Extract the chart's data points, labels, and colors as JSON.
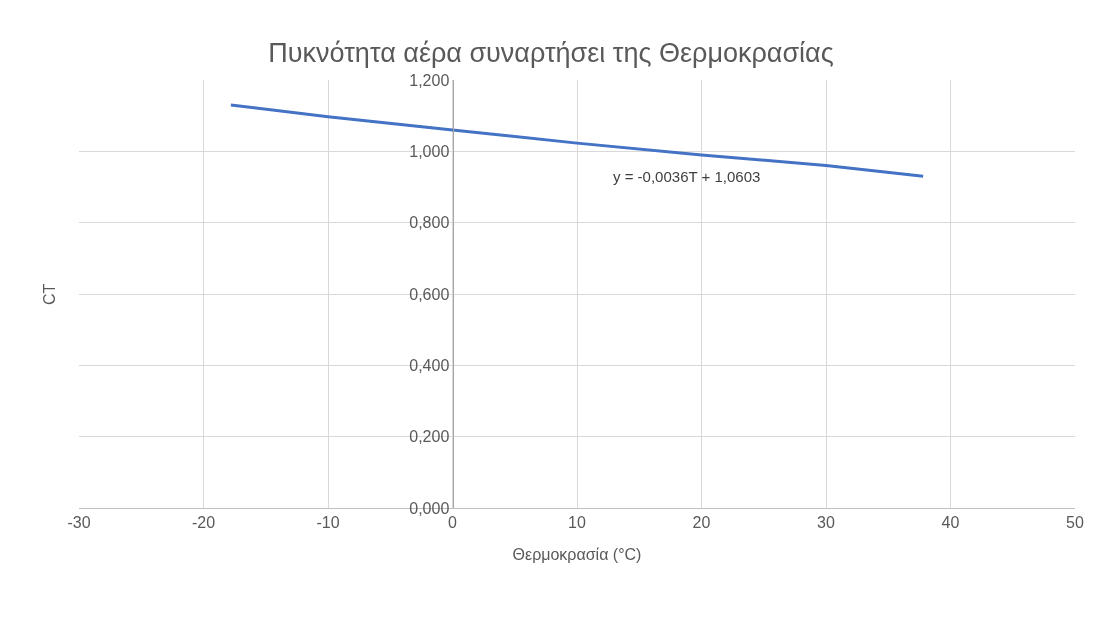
{
  "chart_data": {
    "type": "line",
    "title": "Πυκνότητα αέρα συναρτήσει της Θερμοκρασίας",
    "xlabel": "Θερμοκρασία (°C)",
    "ylabel": "CT",
    "x": [
      -17.8,
      -10,
      0,
      10,
      20,
      30,
      37.8
    ],
    "series": [
      {
        "color": "#4472c4",
        "values": [
          1.13,
          1.097,
          1.06,
          1.023,
          0.99,
          0.96,
          0.93
        ]
      }
    ],
    "xlim": [
      -30,
      50
    ],
    "xticks": [
      -30,
      -20,
      -10,
      0,
      10,
      20,
      30,
      40,
      50
    ],
    "ylim": [
      0,
      1.2
    ],
    "yticks": [
      {
        "value": 0,
        "label": "0,000"
      },
      {
        "value": 0.2,
        "label": "0,200"
      },
      {
        "value": 0.4,
        "label": "0,400"
      },
      {
        "value": 0.6,
        "label": "0,600"
      },
      {
        "value": 0.8,
        "label": "0,800"
      },
      {
        "value": 1,
        "label": "1,000"
      },
      {
        "value": 1.2,
        "label": "1,200"
      }
    ],
    "annotations": [
      "y = -0,0036T + 1,0603"
    ],
    "grid": true,
    "marker": "none",
    "line_style": "solid"
  }
}
